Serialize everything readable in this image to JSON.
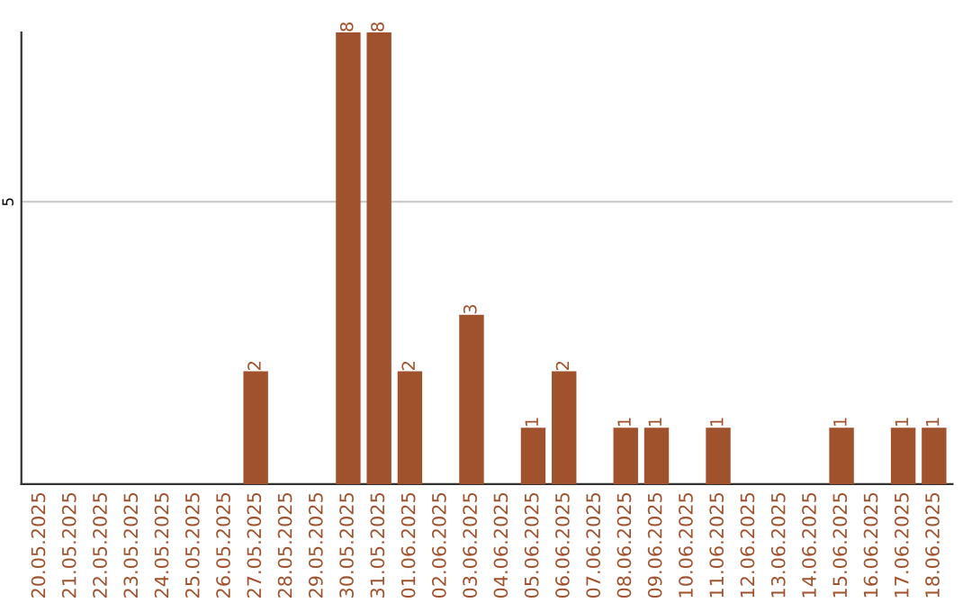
{
  "chart_data": {
    "type": "bar",
    "categories": [
      "20.05.2025",
      "21.05.2025",
      "22.05.2025",
      "23.05.2025",
      "24.05.2025",
      "25.05.2025",
      "26.05.2025",
      "27.05.2025",
      "28.05.2025",
      "29.05.2025",
      "30.05.2025",
      "31.05.2025",
      "01.06.2025",
      "02.06.2025",
      "03.06.2025",
      "04.06.2025",
      "05.06.2025",
      "06.06.2025",
      "07.06.2025",
      "08.06.2025",
      "09.06.2025",
      "10.06.2025",
      "11.06.2025",
      "12.06.2025",
      "13.06.2025",
      "14.06.2025",
      "15.06.2025",
      "16.06.2025",
      "17.06.2025",
      "18.06.2025"
    ],
    "values": [
      0,
      0,
      0,
      0,
      0,
      0,
      0,
      2,
      0,
      0,
      8,
      8,
      2,
      0,
      3,
      0,
      1,
      2,
      0,
      1,
      1,
      0,
      1,
      0,
      0,
      0,
      1,
      0,
      1,
      1
    ],
    "value_labels": [
      null,
      null,
      null,
      null,
      null,
      null,
      null,
      "2",
      null,
      null,
      "8",
      "8",
      "2",
      null,
      "3",
      null,
      "1",
      "2",
      null,
      "1",
      "1",
      null,
      "1",
      null,
      null,
      null,
      "1",
      null,
      "1",
      "1"
    ],
    "color": "#a0522d",
    "ylim": [
      0,
      8
    ],
    "yticks": [
      5
    ],
    "grid": "y"
  }
}
